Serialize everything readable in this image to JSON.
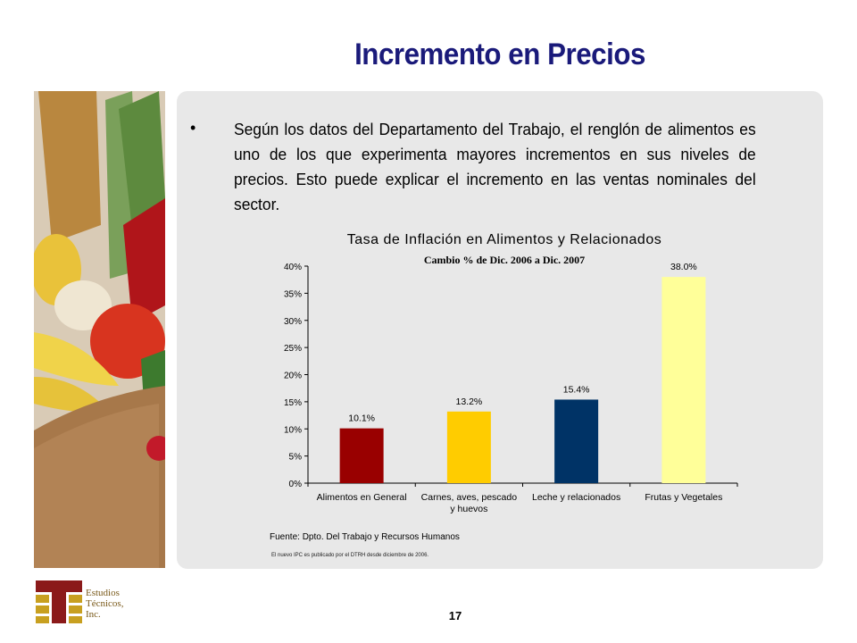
{
  "slide": {
    "title": "Incremento en Precios",
    "bullet_symbol": "•",
    "body": "Según los datos del Departamento del Trabajo, el renglón de alimentos es uno de los que experimenta mayores incrementos en sus niveles de precios.  Esto puede explicar el incremento en las ventas nominales del sector.",
    "page_number": "17"
  },
  "logo": {
    "line1": "Estudios",
    "line2": "Técnicos,",
    "line3": "Inc.",
    "colors": {
      "red": "#8b1a1a",
      "gold": "#c8a020"
    }
  },
  "chart_data": {
    "type": "bar",
    "title": "Tasa de Inflación en Alimentos y Relacionados",
    "subtitle": "Cambio % de Dic. 2006 a Dic. 2007",
    "categories": [
      [
        "Alimentos en General"
      ],
      [
        "Carnes, aves, pescado",
        "y huevos"
      ],
      [
        "Leche y relacionados"
      ],
      [
        "Frutas y Vegetales"
      ]
    ],
    "values": [
      10.1,
      13.2,
      15.4,
      38.0
    ],
    "value_labels": [
      "10.1%",
      "13.2%",
      "15.4%",
      "38.0%"
    ],
    "colors": [
      "#990000",
      "#ffcc00",
      "#003366",
      "#ffff99"
    ],
    "ylim": [
      0,
      40
    ],
    "yticks": [
      "0%",
      "5%",
      "10%",
      "15%",
      "20%",
      "25%",
      "30%",
      "35%",
      "40%"
    ],
    "grid": false,
    "source": "Fuente: Dpto. Del Trabajo y Recursos Humanos",
    "note": "El nuevo IPC es publicado por el DTRH desde diciembre de 2006."
  }
}
